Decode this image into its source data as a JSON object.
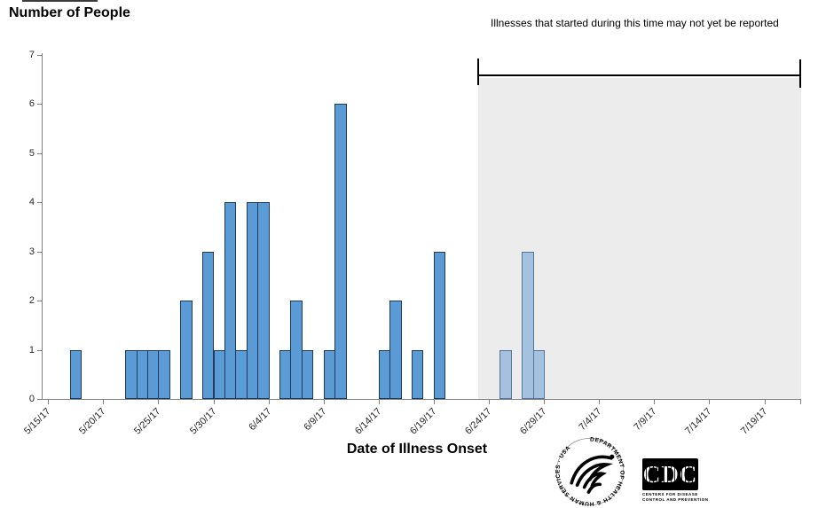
{
  "chart": {
    "title": "Number of People",
    "note": "Illnesses that started during this time may not yet be reported",
    "x_axis_label": "Date of Illness Onset"
  },
  "chart_data": {
    "type": "bar",
    "title": "Number of People",
    "xlabel": "Date of Illness Onset",
    "ylabel": "Number of People",
    "ylim": [
      0,
      7
    ],
    "yticks": [
      0,
      1,
      2,
      3,
      4,
      5,
      6,
      7
    ],
    "xticks": [
      "5/15/17",
      "5/20/17",
      "5/25/17",
      "5/30/17",
      "6/4/17",
      "6/9/17",
      "6/14/17",
      "6/19/17",
      "6/24/17",
      "6/29/17",
      "7/4/17",
      "7/9/17",
      "7/14/17",
      "7/19/17"
    ],
    "grid": false,
    "legend": false,
    "colors": {
      "reported_fill": "#5b9bd5",
      "reported_border": "#1e3a5f",
      "pending_fill": "#a4c2df",
      "pending_border": "#54759b",
      "shade_fill": "#ececec",
      "axis": "#7f7f7f",
      "bracket": "#000000"
    },
    "shaded_region": {
      "start": "6/23/17",
      "annotation": "Illnesses that started during this time may not yet be reported"
    },
    "bars": [
      {
        "date": "5/17/17",
        "value": 1,
        "pending": false
      },
      {
        "date": "5/22/17",
        "value": 1,
        "pending": false
      },
      {
        "date": "5/23/17",
        "value": 1,
        "pending": false
      },
      {
        "date": "5/24/17",
        "value": 1,
        "pending": false
      },
      {
        "date": "5/25/17",
        "value": 1,
        "pending": false
      },
      {
        "date": "5/27/17",
        "value": 2,
        "pending": false
      },
      {
        "date": "5/29/17",
        "value": 3,
        "pending": false
      },
      {
        "date": "5/30/17",
        "value": 1,
        "pending": false
      },
      {
        "date": "5/31/17",
        "value": 4,
        "pending": false
      },
      {
        "date": "6/1/17",
        "value": 1,
        "pending": false
      },
      {
        "date": "6/2/17",
        "value": 4,
        "pending": false
      },
      {
        "date": "6/3/17",
        "value": 4,
        "pending": false
      },
      {
        "date": "6/5/17",
        "value": 1,
        "pending": false
      },
      {
        "date": "6/6/17",
        "value": 2,
        "pending": false
      },
      {
        "date": "6/7/17",
        "value": 1,
        "pending": false
      },
      {
        "date": "6/9/17",
        "value": 1,
        "pending": false
      },
      {
        "date": "6/10/17",
        "value": 6,
        "pending": false
      },
      {
        "date": "6/14/17",
        "value": 1,
        "pending": false
      },
      {
        "date": "6/15/17",
        "value": 2,
        "pending": false
      },
      {
        "date": "6/17/17",
        "value": 1,
        "pending": false
      },
      {
        "date": "6/19/17",
        "value": 3,
        "pending": false
      },
      {
        "date": "6/25/17",
        "value": 1,
        "pending": true
      },
      {
        "date": "6/27/17",
        "value": 3,
        "pending": true
      },
      {
        "date": "6/28/17",
        "value": 1,
        "pending": true
      }
    ]
  },
  "logos": {
    "hhs_seal_text": "DEPARTMENT OF HEALTH & HUMAN SERVICES · USA",
    "cdc_text": "CDC",
    "cdc_sub_line1": "CENTERS FOR DISEASE",
    "cdc_sub_line2": "CONTROL AND PREVENTION"
  }
}
